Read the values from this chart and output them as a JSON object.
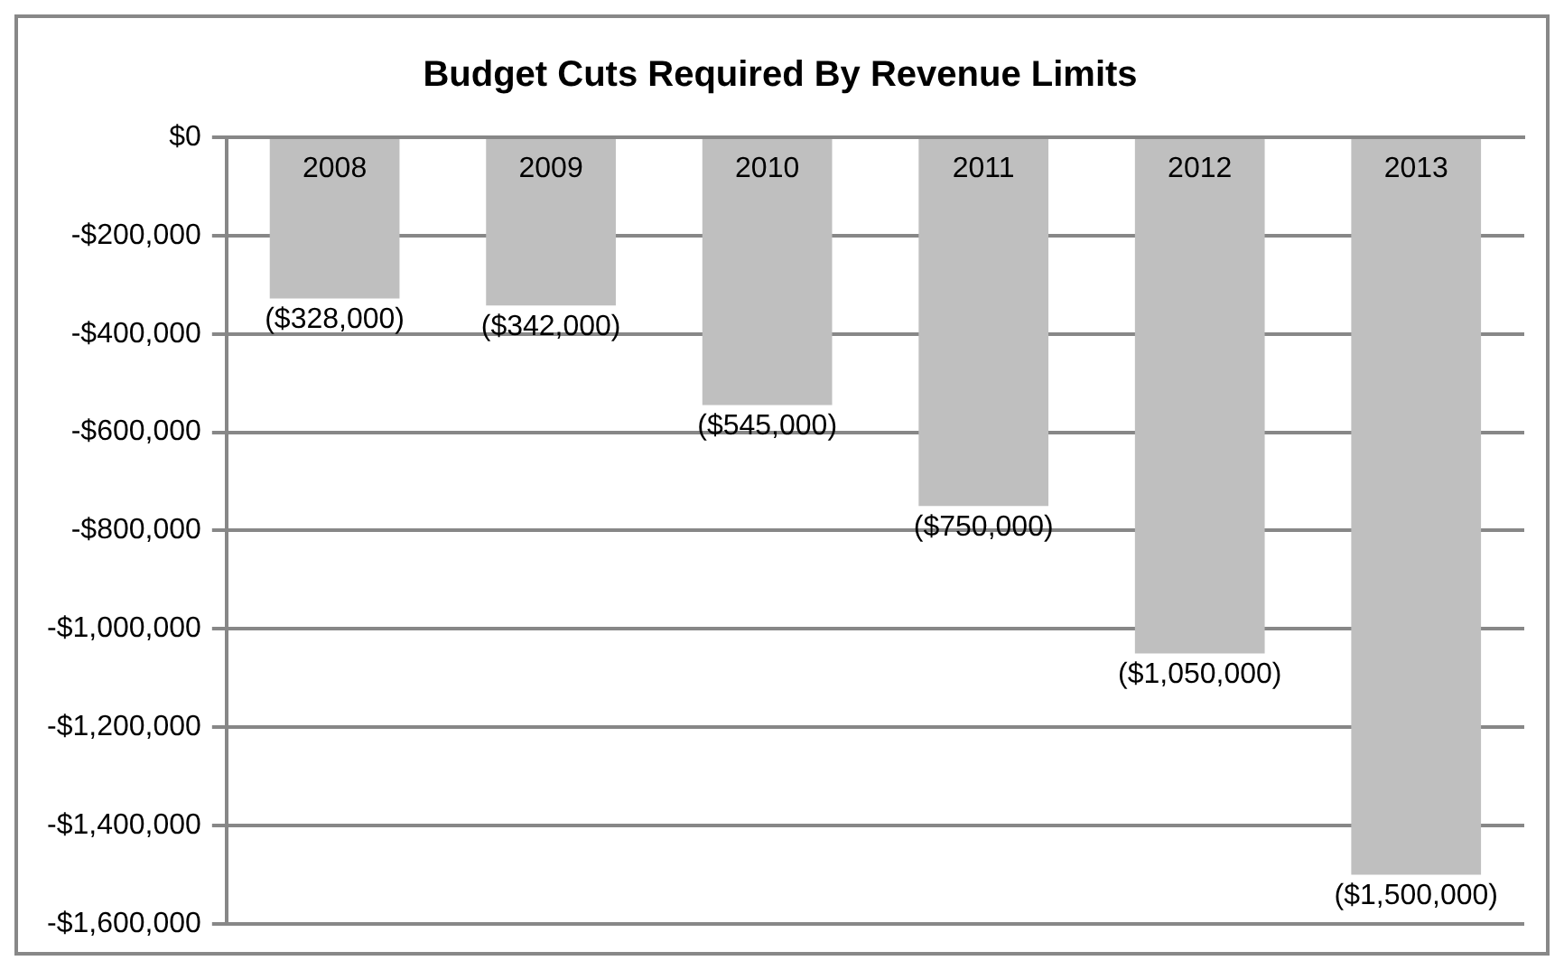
{
  "chart_data": {
    "type": "bar",
    "title": "Budget Cuts Required By Revenue Limits",
    "categories": [
      "2008",
      "2009",
      "2010",
      "2011",
      "2012",
      "2013"
    ],
    "values": [
      -328000,
      -342000,
      -545000,
      -750000,
      -1050000,
      -1500000
    ],
    "value_labels": [
      "($328,000)",
      "($342,000)",
      "($545,000)",
      "($750,000)",
      "($1,050,000)",
      "($1,500,000)"
    ],
    "color": "#bfbfbf",
    "ylim": [
      -1600000,
      0
    ],
    "yticks": [
      {
        "value": 0,
        "label": "$0"
      },
      {
        "value": -200000,
        "label": "-$200,000"
      },
      {
        "value": -400000,
        "label": "-$400,000"
      },
      {
        "value": -600000,
        "label": "-$600,000"
      },
      {
        "value": -800000,
        "label": "-$800,000"
      },
      {
        "value": -1000000,
        "label": "-$1,000,000"
      },
      {
        "value": -1200000,
        "label": "-$1,200,000"
      },
      {
        "value": -1400000,
        "label": "-$1,400,000"
      },
      {
        "value": -1600000,
        "label": "-$1,600,000"
      }
    ],
    "grid": "y",
    "legend": false
  }
}
